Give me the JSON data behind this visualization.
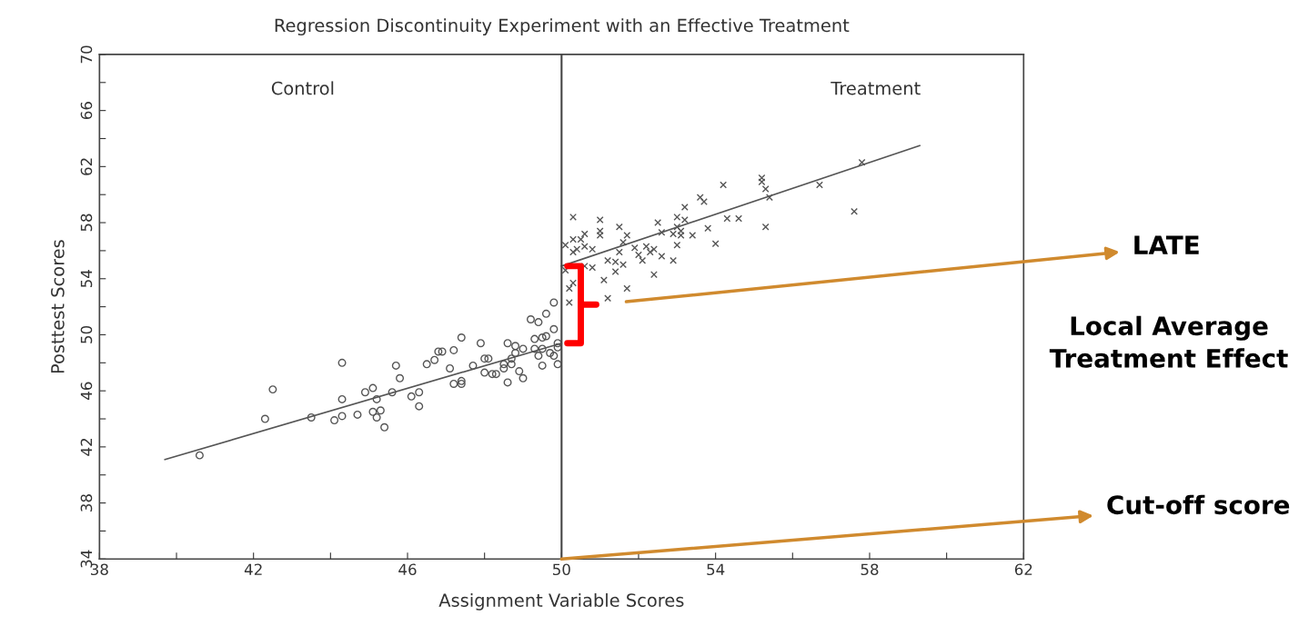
{
  "chart_data": {
    "type": "scatter",
    "title": "Regression Discontinuity Experiment with an Effective Treatment",
    "xlabel": "Assignment Variable Scores",
    "ylabel": "Posttest Scores",
    "xlim": [
      38,
      62
    ],
    "ylim": [
      34,
      70
    ],
    "xticks": [
      38,
      {
        "value": 40,
        "label": null
      },
      42,
      {
        "value": 44,
        "label": null
      },
      46,
      {
        "value": 48,
        "label": null
      },
      50,
      {
        "value": 52,
        "label": null
      },
      54,
      {
        "value": 56,
        "label": null
      },
      58,
      {
        "value": 60,
        "label": null
      },
      62
    ],
    "yticks": [
      34,
      {
        "value": 36,
        "label": null
      },
      38,
      {
        "value": 40,
        "label": null
      },
      42,
      {
        "value": 44,
        "label": null
      },
      46,
      {
        "value": 48,
        "label": null
      },
      50,
      {
        "value": 52,
        "label": null
      },
      54,
      {
        "value": 56,
        "label": null
      },
      58,
      {
        "value": 60,
        "label": null
      },
      62,
      {
        "value": 64,
        "label": null
      },
      66,
      {
        "value": 68,
        "label": null
      },
      70
    ],
    "grid": false,
    "ref_lines": [
      {
        "axis": "x",
        "value": 50,
        "color": "#444444",
        "line_style": "solid"
      }
    ],
    "series": [
      {
        "marker": "circle",
        "color": "#555555",
        "x": [
          40.6,
          42.3,
          42.5,
          43.5,
          44.3,
          44.3,
          44.1,
          44.3,
          44.7,
          44.9,
          45.1,
          45.2,
          45.1,
          45.3,
          45.2,
          45.4,
          45.6,
          45.7,
          45.8,
          46.1,
          46.3,
          46.3,
          46.5,
          46.7,
          46.8,
          46.9,
          47.2,
          47.1,
          47.2,
          47.4,
          47.4,
          47.4,
          47.7,
          47.9,
          48.0,
          48.1,
          48.0,
          48.2,
          48.3,
          48.5,
          48.5,
          48.7,
          48.7,
          48.6,
          48.9,
          49.0,
          48.6,
          48.8,
          48.8,
          49.0,
          49.2,
          49.4,
          49.3,
          49.5,
          49.6,
          49.3,
          49.4,
          49.5,
          49.5,
          49.7,
          49.8,
          49.9,
          49.8,
          49.9,
          49.9,
          49.6,
          49.8
        ],
        "values": [
          41.4,
          44.0,
          46.1,
          44.1,
          48.0,
          45.4,
          43.9,
          44.2,
          44.3,
          45.9,
          46.2,
          45.4,
          44.5,
          44.6,
          44.1,
          43.4,
          45.9,
          47.8,
          46.9,
          45.6,
          45.9,
          44.9,
          47.9,
          48.2,
          48.8,
          48.8,
          48.9,
          47.6,
          46.5,
          46.7,
          46.5,
          49.8,
          47.8,
          49.4,
          48.3,
          48.3,
          47.3,
          47.2,
          47.2,
          47.9,
          47.6,
          48.3,
          47.9,
          46.6,
          47.4,
          46.9,
          49.4,
          49.2,
          48.7,
          49.0,
          51.1,
          50.9,
          49.7,
          49.8,
          49.9,
          49.0,
          48.5,
          47.8,
          49.0,
          48.7,
          48.5,
          47.9,
          50.4,
          49.4,
          49.1,
          51.5,
          52.3
        ]
      },
      {
        "marker": "cross",
        "color": "#555555",
        "x": [
          50.3,
          50.1,
          50.3,
          50.5,
          50.6,
          50.6,
          50.3,
          50.4,
          50.8,
          51.0,
          51.0,
          51.0,
          51.5,
          51.7,
          51.6,
          51.5,
          51.2,
          51.4,
          51.6,
          51.4,
          51.1,
          51.7,
          51.2,
          50.8,
          50.6,
          50.2,
          50.2,
          50.3,
          50.1,
          51.9,
          52.0,
          52.1,
          52.2,
          52.3,
          52.4,
          52.6,
          52.9,
          52.4,
          52.5,
          52.6,
          52.9,
          53.0,
          53.0,
          53.0,
          53.1,
          53.1,
          53.2,
          53.2,
          53.4,
          53.6,
          53.7,
          53.8,
          54.0,
          54.2,
          54.3,
          54.6,
          55.2,
          55.2,
          55.3,
          55.4,
          55.3,
          56.7,
          57.6,
          57.8
        ],
        "values": [
          58.4,
          56.4,
          56.8,
          56.8,
          57.2,
          56.3,
          55.9,
          56.1,
          56.1,
          57.4,
          57.1,
          58.2,
          57.7,
          57.1,
          56.6,
          55.9,
          55.3,
          55.2,
          55.0,
          54.5,
          53.9,
          53.3,
          52.6,
          54.8,
          54.9,
          52.3,
          53.3,
          53.7,
          54.6,
          56.2,
          55.7,
          55.3,
          56.3,
          55.9,
          56.1,
          55.6,
          55.3,
          54.3,
          58.0,
          57.3,
          57.2,
          57.7,
          56.4,
          58.4,
          57.4,
          57.1,
          58.2,
          59.1,
          57.1,
          59.8,
          59.5,
          57.6,
          56.5,
          60.7,
          58.3,
          58.3,
          61.2,
          60.9,
          60.4,
          59.8,
          57.7,
          60.7,
          58.8,
          62.3
        ]
      },
      {
        "type": "line",
        "color": "#555555",
        "x": [
          39.7,
          50
        ],
        "values": [
          41.1,
          49.4
        ]
      },
      {
        "type": "line",
        "color": "#555555",
        "x": [
          50,
          59.3
        ],
        "values": [
          54.9,
          63.5
        ]
      }
    ],
    "annotations": [
      "Control",
      "Treatment",
      "LATE",
      "Local Average Treatment Effect",
      {
        "text": "Cut-off score",
        "x": 50,
        "y": 34
      }
    ]
  }
}
